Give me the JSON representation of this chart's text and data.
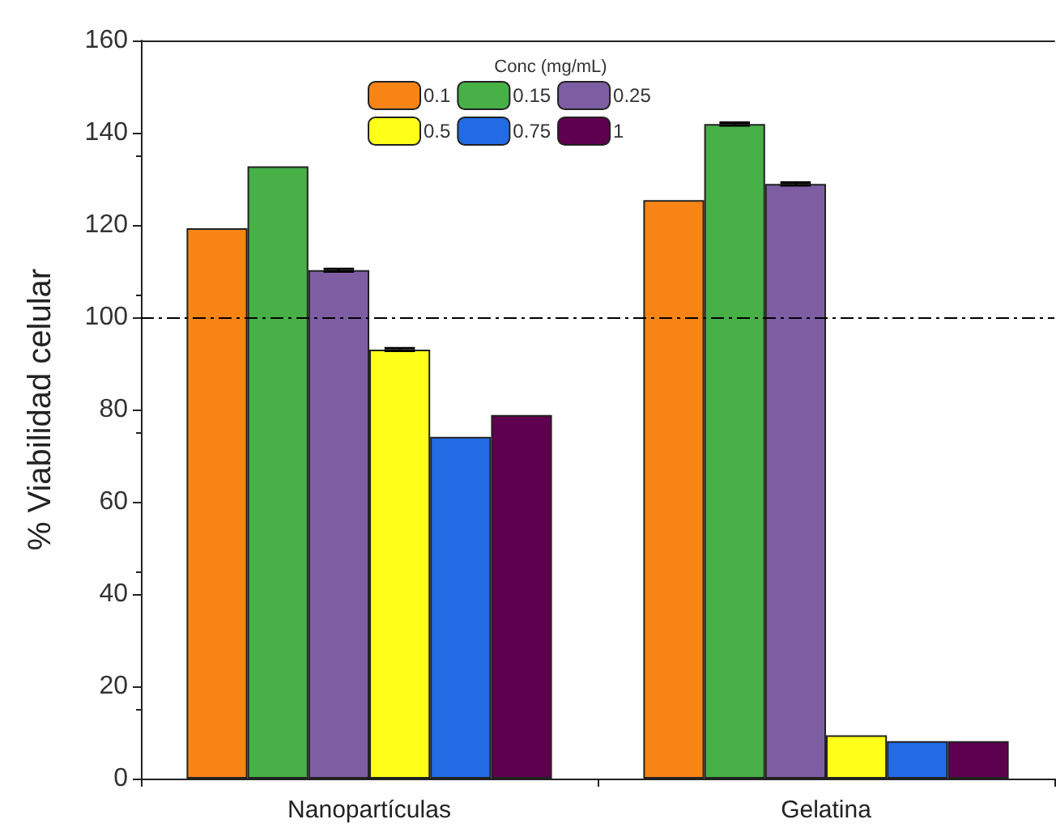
{
  "chart_data": {
    "type": "bar",
    "ylabel": "% Viabilidad celular",
    "legend_title": "Conc (mg/mL)",
    "categories": [
      "Nanopartículas",
      "Gelatina"
    ],
    "series": [
      {
        "name": "0.1",
        "color": "#f98416",
        "values": [
          119.3,
          125.4
        ]
      },
      {
        "name": "0.15",
        "color": "#47b046",
        "values": [
          132.7,
          141.9
        ],
        "errors": [
          null,
          0.3
        ]
      },
      {
        "name": "0.25",
        "color": "#7d5ea3",
        "values": [
          110.2,
          128.9
        ],
        "errors": [
          0.3,
          0.3
        ]
      },
      {
        "name": "0.5",
        "color": "#ffff1a",
        "values": [
          93.0,
          9.4
        ],
        "errors": [
          0.3,
          null
        ]
      },
      {
        "name": "0.75",
        "color": "#226be4",
        "values": [
          74.1,
          8.1
        ]
      },
      {
        "name": "1",
        "color": "#5e004f",
        "values": [
          78.8,
          8.1
        ]
      }
    ],
    "ylim": [
      0,
      160
    ],
    "yticks": [
      0,
      20,
      40,
      60,
      80,
      100,
      120,
      140,
      160
    ],
    "ref_lines": [
      {
        "axis": "y",
        "value": 100,
        "line_style": "dashdot",
        "color": "#000000"
      }
    ],
    "legend": "top",
    "grid": false
  }
}
